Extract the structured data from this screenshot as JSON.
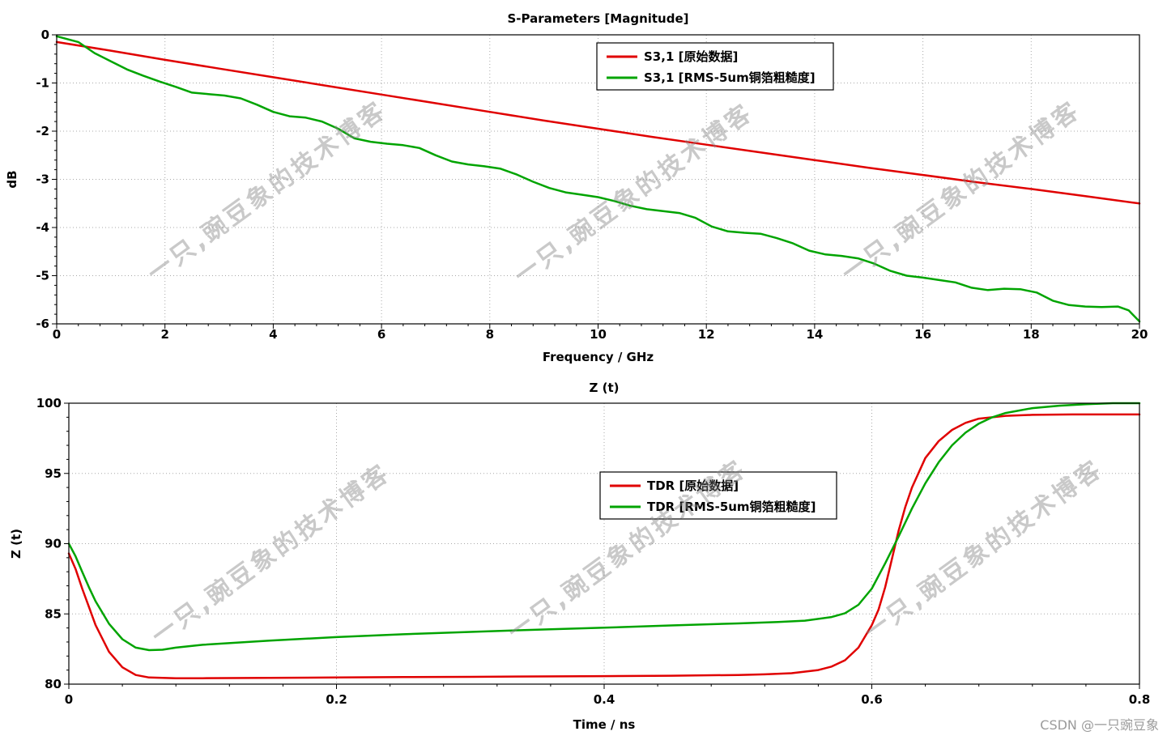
{
  "page": {
    "background": "#ffffff"
  },
  "watermark": {
    "text": "一只,豌豆象的技术博客",
    "credit": "CSDN @一只豌豆象"
  },
  "chart_data": [
    {
      "type": "line",
      "title": "S-Parameters [Magnitude]",
      "xlabel": "Frequency / GHz",
      "ylabel": "dB",
      "xlim": [
        0,
        20
      ],
      "ylim": [
        -6,
        0
      ],
      "xticks": [
        0,
        2,
        4,
        6,
        8,
        10,
        12,
        14,
        16,
        18,
        20
      ],
      "yticks": [
        0,
        -1,
        -2,
        -3,
        -4,
        -5,
        -6
      ],
      "grid": true,
      "legend_position": "top-center",
      "series": [
        {
          "id": "s31-original",
          "name": "S3,1 [原始数据]",
          "color": "#e00000",
          "points": [
            [
              0,
              -0.15
            ],
            [
              1,
              -0.33
            ],
            [
              2,
              -0.52
            ],
            [
              3,
              -0.7
            ],
            [
              4,
              -0.88
            ],
            [
              5,
              -1.06
            ],
            [
              6,
              -1.24
            ],
            [
              7,
              -1.42
            ],
            [
              8,
              -1.6
            ],
            [
              9,
              -1.78
            ],
            [
              10,
              -1.95
            ],
            [
              11,
              -2.12
            ],
            [
              12,
              -2.28
            ],
            [
              13,
              -2.44
            ],
            [
              14,
              -2.6
            ],
            [
              15,
              -2.76
            ],
            [
              16,
              -2.91
            ],
            [
              17,
              -3.06
            ],
            [
              18,
              -3.2
            ],
            [
              19,
              -3.35
            ],
            [
              20,
              -3.5
            ]
          ]
        },
        {
          "id": "s31-roughness",
          "name": "S3,1 [RMS-5um铜箔粗糙度]",
          "color": "#00a400",
          "points": [
            [
              0,
              -0.03
            ],
            [
              0.4,
              -0.15
            ],
            [
              0.7,
              -0.38
            ],
            [
              1.0,
              -0.55
            ],
            [
              1.3,
              -0.72
            ],
            [
              1.6,
              -0.85
            ],
            [
              1.9,
              -0.97
            ],
            [
              2.2,
              -1.08
            ],
            [
              2.5,
              -1.2
            ],
            [
              2.8,
              -1.23
            ],
            [
              3.1,
              -1.26
            ],
            [
              3.4,
              -1.32
            ],
            [
              3.7,
              -1.45
            ],
            [
              4.0,
              -1.6
            ],
            [
              4.3,
              -1.69
            ],
            [
              4.6,
              -1.72
            ],
            [
              4.9,
              -1.8
            ],
            [
              5.2,
              -1.95
            ],
            [
              5.5,
              -2.15
            ],
            [
              5.8,
              -2.22
            ],
            [
              6.1,
              -2.26
            ],
            [
              6.4,
              -2.29
            ],
            [
              6.7,
              -2.35
            ],
            [
              7.0,
              -2.5
            ],
            [
              7.3,
              -2.63
            ],
            [
              7.6,
              -2.69
            ],
            [
              7.9,
              -2.73
            ],
            [
              8.2,
              -2.78
            ],
            [
              8.5,
              -2.9
            ],
            [
              8.8,
              -3.05
            ],
            [
              9.1,
              -3.18
            ],
            [
              9.4,
              -3.27
            ],
            [
              9.7,
              -3.32
            ],
            [
              10.0,
              -3.37
            ],
            [
              10.3,
              -3.45
            ],
            [
              10.6,
              -3.55
            ],
            [
              10.9,
              -3.62
            ],
            [
              11.2,
              -3.66
            ],
            [
              11.5,
              -3.7
            ],
            [
              11.8,
              -3.8
            ],
            [
              12.1,
              -3.98
            ],
            [
              12.4,
              -4.08
            ],
            [
              12.7,
              -4.11
            ],
            [
              13.0,
              -4.13
            ],
            [
              13.3,
              -4.22
            ],
            [
              13.6,
              -4.33
            ],
            [
              13.9,
              -4.48
            ],
            [
              14.2,
              -4.56
            ],
            [
              14.5,
              -4.59
            ],
            [
              14.8,
              -4.64
            ],
            [
              15.1,
              -4.75
            ],
            [
              15.4,
              -4.9
            ],
            [
              15.7,
              -5.0
            ],
            [
              16.0,
              -5.04
            ],
            [
              16.3,
              -5.09
            ],
            [
              16.6,
              -5.14
            ],
            [
              16.9,
              -5.25
            ],
            [
              17.2,
              -5.3
            ],
            [
              17.5,
              -5.27
            ],
            [
              17.8,
              -5.28
            ],
            [
              18.1,
              -5.35
            ],
            [
              18.4,
              -5.52
            ],
            [
              18.7,
              -5.61
            ],
            [
              19.0,
              -5.64
            ],
            [
              19.3,
              -5.65
            ],
            [
              19.6,
              -5.64
            ],
            [
              19.8,
              -5.72
            ],
            [
              20.0,
              -5.95
            ]
          ]
        }
      ]
    },
    {
      "type": "line",
      "title": "Z (t)",
      "xlabel": "Time / ns",
      "ylabel": "Z (t)",
      "xlim": [
        0,
        0.8
      ],
      "ylim": [
        80,
        100
      ],
      "xticks": [
        0,
        0.2,
        0.4,
        0.6,
        0.8
      ],
      "yticks": [
        80,
        85,
        90,
        95,
        100
      ],
      "grid": true,
      "legend_position": "upper-middle",
      "series": [
        {
          "id": "tdr-original",
          "name": "TDR [原始数据]",
          "color": "#e00000",
          "points": [
            [
              0,
              89.3
            ],
            [
              0.005,
              88.2
            ],
            [
              0.01,
              86.8
            ],
            [
              0.015,
              85.5
            ],
            [
              0.02,
              84.2
            ],
            [
              0.03,
              82.3
            ],
            [
              0.04,
              81.2
            ],
            [
              0.05,
              80.65
            ],
            [
              0.06,
              80.47
            ],
            [
              0.08,
              80.42
            ],
            [
              0.1,
              80.42
            ],
            [
              0.15,
              80.45
            ],
            [
              0.2,
              80.47
            ],
            [
              0.25,
              80.5
            ],
            [
              0.3,
              80.52
            ],
            [
              0.35,
              80.55
            ],
            [
              0.4,
              80.57
            ],
            [
              0.45,
              80.6
            ],
            [
              0.5,
              80.65
            ],
            [
              0.52,
              80.7
            ],
            [
              0.54,
              80.78
            ],
            [
              0.56,
              81.0
            ],
            [
              0.57,
              81.25
            ],
            [
              0.58,
              81.7
            ],
            [
              0.59,
              82.6
            ],
            [
              0.6,
              84.2
            ],
            [
              0.605,
              85.3
            ],
            [
              0.61,
              86.9
            ],
            [
              0.615,
              88.9
            ],
            [
              0.62,
              90.9
            ],
            [
              0.625,
              92.6
            ],
            [
              0.63,
              94.0
            ],
            [
              0.64,
              96.1
            ],
            [
              0.65,
              97.3
            ],
            [
              0.66,
              98.1
            ],
            [
              0.67,
              98.6
            ],
            [
              0.68,
              98.9
            ],
            [
              0.7,
              99.1
            ],
            [
              0.72,
              99.17
            ],
            [
              0.75,
              99.2
            ],
            [
              0.8,
              99.2
            ]
          ]
        },
        {
          "id": "tdr-roughness",
          "name": "TDR [RMS-5um铜箔粗糙度]",
          "color": "#00a400",
          "points": [
            [
              0,
              90.0
            ],
            [
              0.005,
              89.1
            ],
            [
              0.01,
              88.0
            ],
            [
              0.015,
              86.9
            ],
            [
              0.02,
              85.9
            ],
            [
              0.03,
              84.3
            ],
            [
              0.04,
              83.2
            ],
            [
              0.05,
              82.6
            ],
            [
              0.06,
              82.42
            ],
            [
              0.07,
              82.45
            ],
            [
              0.08,
              82.6
            ],
            [
              0.1,
              82.8
            ],
            [
              0.15,
              83.1
            ],
            [
              0.2,
              83.35
            ],
            [
              0.25,
              83.55
            ],
            [
              0.3,
              83.72
            ],
            [
              0.35,
              83.88
            ],
            [
              0.4,
              84.02
            ],
            [
              0.45,
              84.18
            ],
            [
              0.5,
              84.32
            ],
            [
              0.53,
              84.42
            ],
            [
              0.55,
              84.52
            ],
            [
              0.57,
              84.78
            ],
            [
              0.58,
              85.05
            ],
            [
              0.59,
              85.65
            ],
            [
              0.6,
              86.8
            ],
            [
              0.61,
              88.6
            ],
            [
              0.62,
              90.5
            ],
            [
              0.63,
              92.5
            ],
            [
              0.64,
              94.3
            ],
            [
              0.65,
              95.8
            ],
            [
              0.66,
              97.0
            ],
            [
              0.67,
              97.9
            ],
            [
              0.68,
              98.55
            ],
            [
              0.69,
              99.0
            ],
            [
              0.7,
              99.3
            ],
            [
              0.72,
              99.65
            ],
            [
              0.74,
              99.82
            ],
            [
              0.76,
              99.93
            ],
            [
              0.78,
              100.0
            ],
            [
              0.8,
              100.0
            ]
          ]
        }
      ]
    }
  ],
  "style": {
    "grid_color": "#a8a8a8",
    "axis_color": "#000000",
    "red": "#e00000",
    "green": "#00a400"
  }
}
